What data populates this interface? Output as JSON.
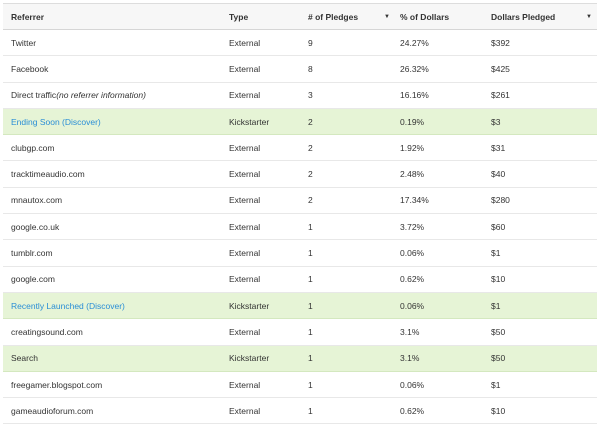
{
  "columns": {
    "referrer": "Referrer",
    "type": "Type",
    "pledges": "# of Pledges",
    "pct": "% of Dollars",
    "dollars": "Dollars Pledged"
  },
  "sort_icon_name": "caret-down-icon",
  "rows": [
    {
      "referrer": "Twitter",
      "note": "",
      "type": "External",
      "pledges": "9",
      "pct": "24.27%",
      "dollars": "$392",
      "kind": "external"
    },
    {
      "referrer": "Facebook",
      "note": "",
      "type": "External",
      "pledges": "8",
      "pct": "26.32%",
      "dollars": "$425",
      "kind": "external"
    },
    {
      "referrer": "Direct traffic ",
      "note": "(no referrer information)",
      "type": "External",
      "pledges": "3",
      "pct": "16.16%",
      "dollars": "$261",
      "kind": "external"
    },
    {
      "referrer": "Ending Soon (Discover)",
      "note": "",
      "type": "Kickstarter",
      "pledges": "2",
      "pct": "0.19%",
      "dollars": "$3",
      "kind": "kickstarter",
      "link": true
    },
    {
      "referrer": "clubgp.com",
      "note": "",
      "type": "External",
      "pledges": "2",
      "pct": "1.92%",
      "dollars": "$31",
      "kind": "external"
    },
    {
      "referrer": "tracktimeaudio.com",
      "note": "",
      "type": "External",
      "pledges": "2",
      "pct": "2.48%",
      "dollars": "$40",
      "kind": "external"
    },
    {
      "referrer": "mnautox.com",
      "note": "",
      "type": "External",
      "pledges": "2",
      "pct": "17.34%",
      "dollars": "$280",
      "kind": "external"
    },
    {
      "referrer": "google.co.uk",
      "note": "",
      "type": "External",
      "pledges": "1",
      "pct": "3.72%",
      "dollars": "$60",
      "kind": "external"
    },
    {
      "referrer": "tumblr.com",
      "note": "",
      "type": "External",
      "pledges": "1",
      "pct": "0.06%",
      "dollars": "$1",
      "kind": "external"
    },
    {
      "referrer": "google.com",
      "note": "",
      "type": "External",
      "pledges": "1",
      "pct": "0.62%",
      "dollars": "$10",
      "kind": "external"
    },
    {
      "referrer": "Recently Launched (Discover)",
      "note": "",
      "type": "Kickstarter",
      "pledges": "1",
      "pct": "0.06%",
      "dollars": "$1",
      "kind": "kickstarter",
      "link": true
    },
    {
      "referrer": "creatingsound.com",
      "note": "",
      "type": "External",
      "pledges": "1",
      "pct": "3.1%",
      "dollars": "$50",
      "kind": "external"
    },
    {
      "referrer": "Search",
      "note": "",
      "type": "Kickstarter",
      "pledges": "1",
      "pct": "3.1%",
      "dollars": "$50",
      "kind": "kickstarter",
      "link": false
    },
    {
      "referrer": "freegamer.blogspot.com",
      "note": "",
      "type": "External",
      "pledges": "1",
      "pct": "0.06%",
      "dollars": "$1",
      "kind": "external"
    },
    {
      "referrer": "gameaudioforum.com",
      "note": "",
      "type": "External",
      "pledges": "1",
      "pct": "0.62%",
      "dollars": "$10",
      "kind": "external"
    }
  ],
  "colors": {
    "kickstarter_row": "#e6f4d6",
    "link": "#2a8ed6",
    "header_bg": "#f7f7f7"
  }
}
